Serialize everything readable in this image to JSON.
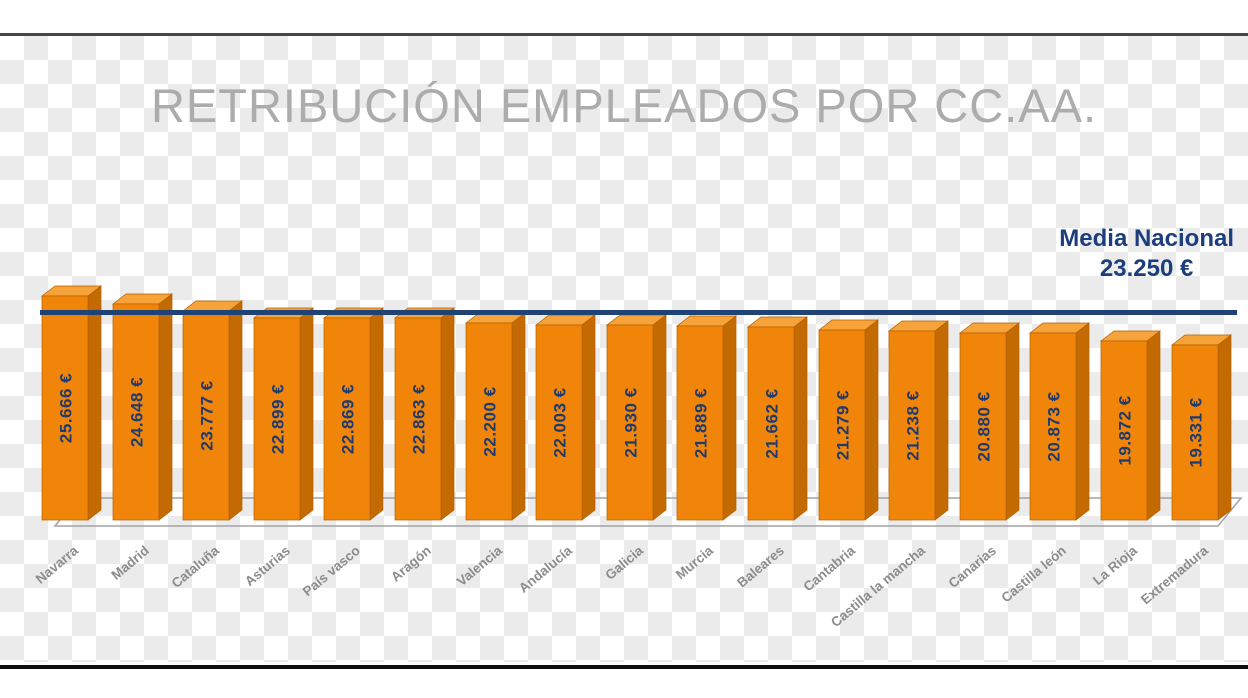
{
  "chart_data": {
    "type": "bar",
    "title": "RETRIBUCIÓN EMPLEADOS POR CC.AA.",
    "categories": [
      "Navarra",
      "Madrid",
      "Cataluña",
      "Asturias",
      "País vasco",
      "Aragón",
      "Valencia",
      "Andalucía",
      "Galicia",
      "Murcia",
      "Baleares",
      "Cantabria",
      "Castilla la mancha",
      "Canarias",
      "Castilla león",
      "La Rioja",
      "Extremadura"
    ],
    "values": [
      25666,
      24648,
      23777,
      22899,
      22869,
      22863,
      22200,
      22003,
      21930,
      21889,
      21662,
      21279,
      21238,
      20880,
      20873,
      19872,
      19331
    ],
    "value_labels": [
      "25.666 €",
      "24.648 €",
      "23.777 €",
      "22.899 €",
      "22.869 €",
      "22.863 €",
      "22.200 €",
      "22.003 €",
      "21.930 €",
      "21.889 €",
      "21.662 €",
      "21.279 €",
      "21.238 €",
      "20.880 €",
      "20.873 €",
      "19.872 €",
      "19.331 €"
    ],
    "reference_line": {
      "label": "Media Nacional",
      "value": 23250,
      "value_label": "23.250 €"
    },
    "xlabel": "",
    "ylabel": "",
    "legend": false,
    "grid": false,
    "colors": {
      "bar_front": "#F0850A",
      "bar_top": "#F6A339",
      "bar_side": "#C36A03",
      "bar_stroke": "#B55F00",
      "value_label": "#1E3A6E",
      "category_label": "#8C8C8C",
      "reference_line": "#1F4374",
      "reference_text": "#1D3E7D",
      "title": "#ACACAC",
      "floor_stroke": "#A3A3A3"
    }
  }
}
